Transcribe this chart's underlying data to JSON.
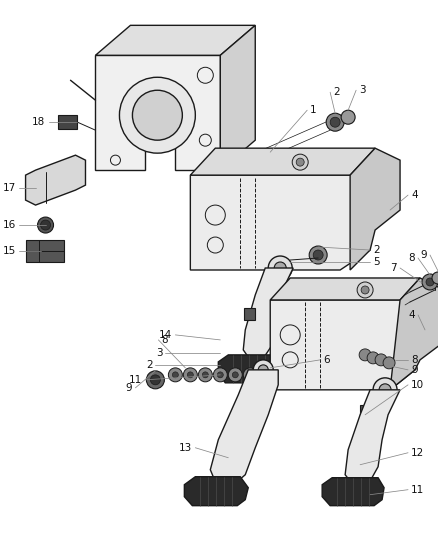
{
  "bg_color": "#ffffff",
  "line_color": "#1a1a1a",
  "gray_color": "#555555",
  "dark_color": "#2a2a2a",
  "fig_width": 4.39,
  "fig_height": 5.33,
  "dpi": 100,
  "label_fs": 7.5,
  "callout_color": "#888888",
  "callout_lw": 0.55
}
